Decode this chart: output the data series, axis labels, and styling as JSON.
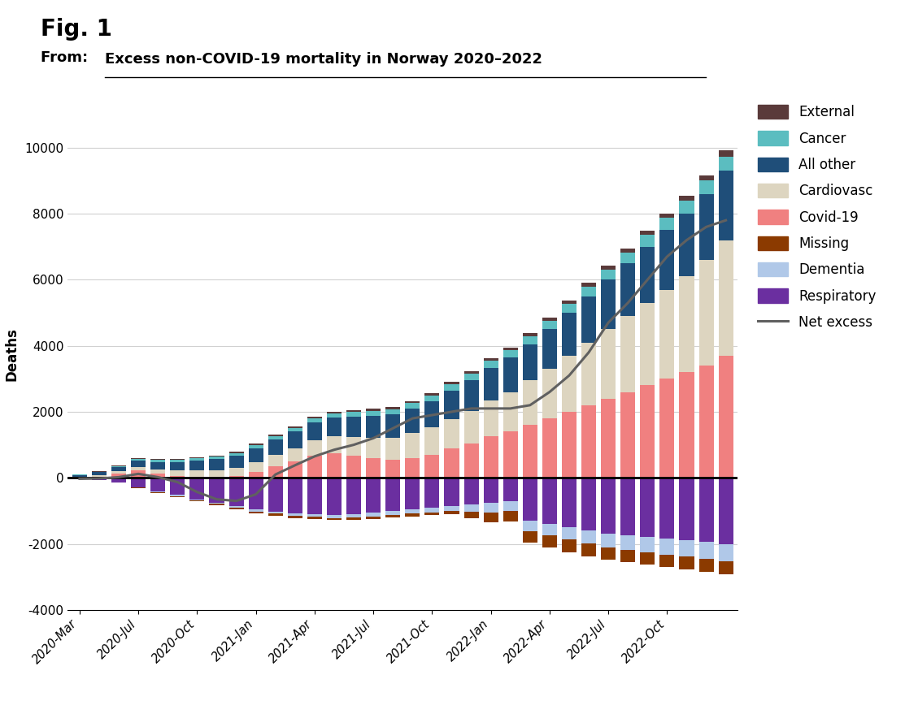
{
  "title_fig": "Fig. 1",
  "ylabel": "Deaths",
  "ylim": [
    -4000,
    11500
  ],
  "yticks": [
    -4000,
    -2000,
    0,
    2000,
    4000,
    6000,
    8000,
    10000
  ],
  "tick_positions": [
    0,
    3,
    6,
    9,
    12,
    15,
    18,
    21,
    24,
    27,
    30
  ],
  "tick_labels": [
    "2020-Mar",
    "2020-Jul",
    "2020-Oct",
    "2021-Jan",
    "2021-Apr",
    "2021-Jul",
    "2021-Oct",
    "2022-Jan",
    "2022-Apr",
    "2022-Jul",
    "2022-Oct"
  ],
  "colors": {
    "External": "#5a3a3a",
    "Cancer": "#5bbdc0",
    "All other": "#1f4e79",
    "Cardiovasc": "#ddd5c0",
    "Covid-19": "#f08080",
    "Missing": "#8b3a00",
    "Dementia": "#b0c8e8",
    "Respiratory": "#6b2fa0",
    "Net excess": "#606060"
  },
  "n_bars": 34,
  "bar_width": 0.75,
  "External": [
    10,
    15,
    20,
    25,
    25,
    30,
    30,
    35,
    35,
    40,
    40,
    45,
    50,
    50,
    55,
    60,
    65,
    65,
    70,
    75,
    80,
    85,
    90,
    95,
    100,
    105,
    110,
    115,
    120,
    130,
    140,
    150,
    160,
    180
  ],
  "Cancer": [
    15,
    20,
    30,
    50,
    55,
    60,
    65,
    70,
    80,
    90,
    100,
    110,
    120,
    130,
    140,
    150,
    160,
    170,
    180,
    190,
    200,
    210,
    220,
    230,
    250,
    270,
    290,
    310,
    330,
    350,
    370,
    390,
    410,
    430
  ],
  "All other": [
    50,
    80,
    120,
    200,
    230,
    260,
    300,
    330,
    360,
    420,
    460,
    500,
    540,
    580,
    620,
    660,
    700,
    740,
    800,
    860,
    920,
    980,
    1040,
    1100,
    1200,
    1300,
    1400,
    1500,
    1600,
    1700,
    1800,
    1900,
    2000,
    2100
  ],
  "Cardiovasc": [
    30,
    50,
    80,
    100,
    120,
    160,
    200,
    230,
    260,
    300,
    350,
    400,
    450,
    500,
    560,
    620,
    680,
    750,
    820,
    900,
    980,
    1100,
    1200,
    1350,
    1500,
    1700,
    1900,
    2100,
    2300,
    2500,
    2700,
    2900,
    3200,
    3500
  ],
  "Covid-19": [
    10,
    40,
    120,
    230,
    130,
    60,
    20,
    5,
    50,
    180,
    350,
    500,
    680,
    750,
    680,
    600,
    540,
    600,
    700,
    880,
    1050,
    1250,
    1400,
    1600,
    1800,
    2000,
    2200,
    2400,
    2600,
    2800,
    3000,
    3200,
    3400,
    3700
  ],
  "Missing": [
    -5,
    -8,
    -12,
    -20,
    -25,
    -30,
    -35,
    -40,
    -45,
    -50,
    -55,
    -60,
    -65,
    -70,
    -75,
    -80,
    -85,
    -90,
    -95,
    -100,
    -200,
    -300,
    -320,
    -340,
    -360,
    -380,
    -380,
    -380,
    -380,
    -380,
    -380,
    -380,
    -380,
    -380
  ],
  "Dementia": [
    -5,
    -8,
    -12,
    -18,
    -22,
    -28,
    -35,
    -42,
    -50,
    -58,
    -66,
    -75,
    -84,
    -93,
    -102,
    -112,
    -122,
    -132,
    -142,
    -152,
    -220,
    -290,
    -310,
    -330,
    -350,
    -370,
    -390,
    -410,
    -430,
    -450,
    -470,
    -490,
    -510,
    -530
  ],
  "Respiratory": [
    -30,
    -60,
    -130,
    -280,
    -420,
    -520,
    -650,
    -750,
    -850,
    -960,
    -1020,
    -1080,
    -1100,
    -1120,
    -1100,
    -1060,
    -1000,
    -950,
    -900,
    -850,
    -800,
    -760,
    -700,
    -1300,
    -1400,
    -1500,
    -1600,
    -1700,
    -1750,
    -1800,
    -1850,
    -1900,
    -1950,
    -2000
  ],
  "Net excess": [
    -30,
    -20,
    20,
    120,
    20,
    -130,
    -430,
    -650,
    -700,
    -500,
    100,
    380,
    650,
    850,
    1000,
    1200,
    1500,
    1800,
    1900,
    2000,
    2100,
    2100,
    2100,
    2200,
    2600,
    3100,
    3800,
    4700,
    5300,
    6000,
    6700,
    7200,
    7600,
    7800
  ]
}
